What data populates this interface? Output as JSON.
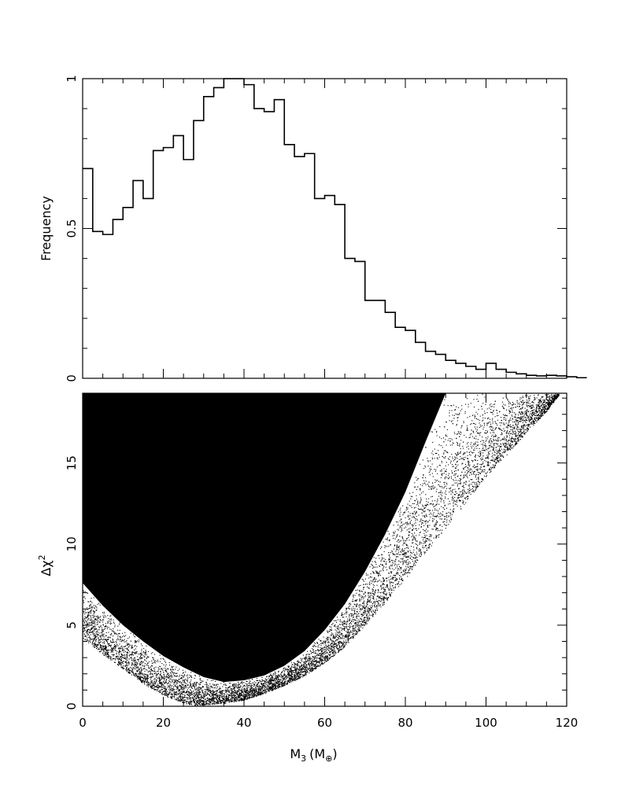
{
  "chart_data": [
    {
      "type": "histogram",
      "ylabel": "Frequency",
      "xlim": [
        0,
        120
      ],
      "ylim": [
        0,
        1.0
      ],
      "y_ticks": [
        "0",
        "0.5",
        "1"
      ],
      "bin_width": 2.5,
      "bin_edges_start": 0,
      "values": [
        0.7,
        0.49,
        0.48,
        0.53,
        0.57,
        0.66,
        0.6,
        0.76,
        0.77,
        0.81,
        0.73,
        0.86,
        0.94,
        0.97,
        1.0,
        1.0,
        0.98,
        0.9,
        0.89,
        0.93,
        0.78,
        0.74,
        0.75,
        0.6,
        0.61,
        0.58,
        0.4,
        0.39,
        0.26,
        0.26,
        0.22,
        0.17,
        0.16,
        0.12,
        0.09,
        0.08,
        0.06,
        0.05,
        0.04,
        0.03,
        0.05,
        0.03,
        0.02,
        0.015,
        0.01,
        0.008,
        0.01,
        0.008,
        0.005,
        0.002
      ]
    },
    {
      "type": "scatter",
      "xlabel": "M",
      "xlabel_subscript": "3",
      "xlabel_unit": "(M",
      "xlabel_unit_symbol": "⊕",
      "xlabel_unit_close": ")",
      "ylabel_prefix": "Δχ",
      "ylabel_superscript": "2",
      "xlim": [
        0,
        120
      ],
      "ylim": [
        0,
        19.3
      ],
      "x_ticks": [
        "0",
        "20",
        "40",
        "60",
        "80",
        "100",
        "120"
      ],
      "y_ticks": [
        "0",
        "5",
        "10",
        "15"
      ],
      "lower_envelope": {
        "x": [
          0,
          5,
          10,
          15,
          20,
          25,
          28,
          30,
          35,
          40,
          45,
          50,
          55,
          60,
          65,
          70,
          75,
          80,
          85,
          90,
          95,
          100,
          105,
          110,
          115,
          118
        ],
        "y": [
          4.2,
          3.2,
          2.3,
          1.4,
          0.7,
          0.2,
          0.05,
          0.1,
          0.2,
          0.4,
          0.8,
          1.3,
          1.9,
          2.7,
          3.7,
          5.0,
          6.4,
          7.9,
          9.5,
          11.0,
          12.6,
          14.2,
          15.5,
          16.9,
          18.2,
          19.2
        ]
      },
      "dense_envelope": {
        "x": [
          0,
          5,
          10,
          15,
          20,
          25,
          30,
          35,
          40,
          45,
          50,
          55,
          60,
          65,
          70,
          75,
          80,
          85,
          90
        ],
        "y": [
          7.6,
          6.2,
          5.0,
          4.0,
          3.1,
          2.4,
          1.8,
          1.5,
          1.6,
          1.9,
          2.5,
          3.4,
          4.7,
          6.3,
          8.3,
          10.6,
          13.2,
          16.3,
          19.3
        ]
      }
    }
  ]
}
